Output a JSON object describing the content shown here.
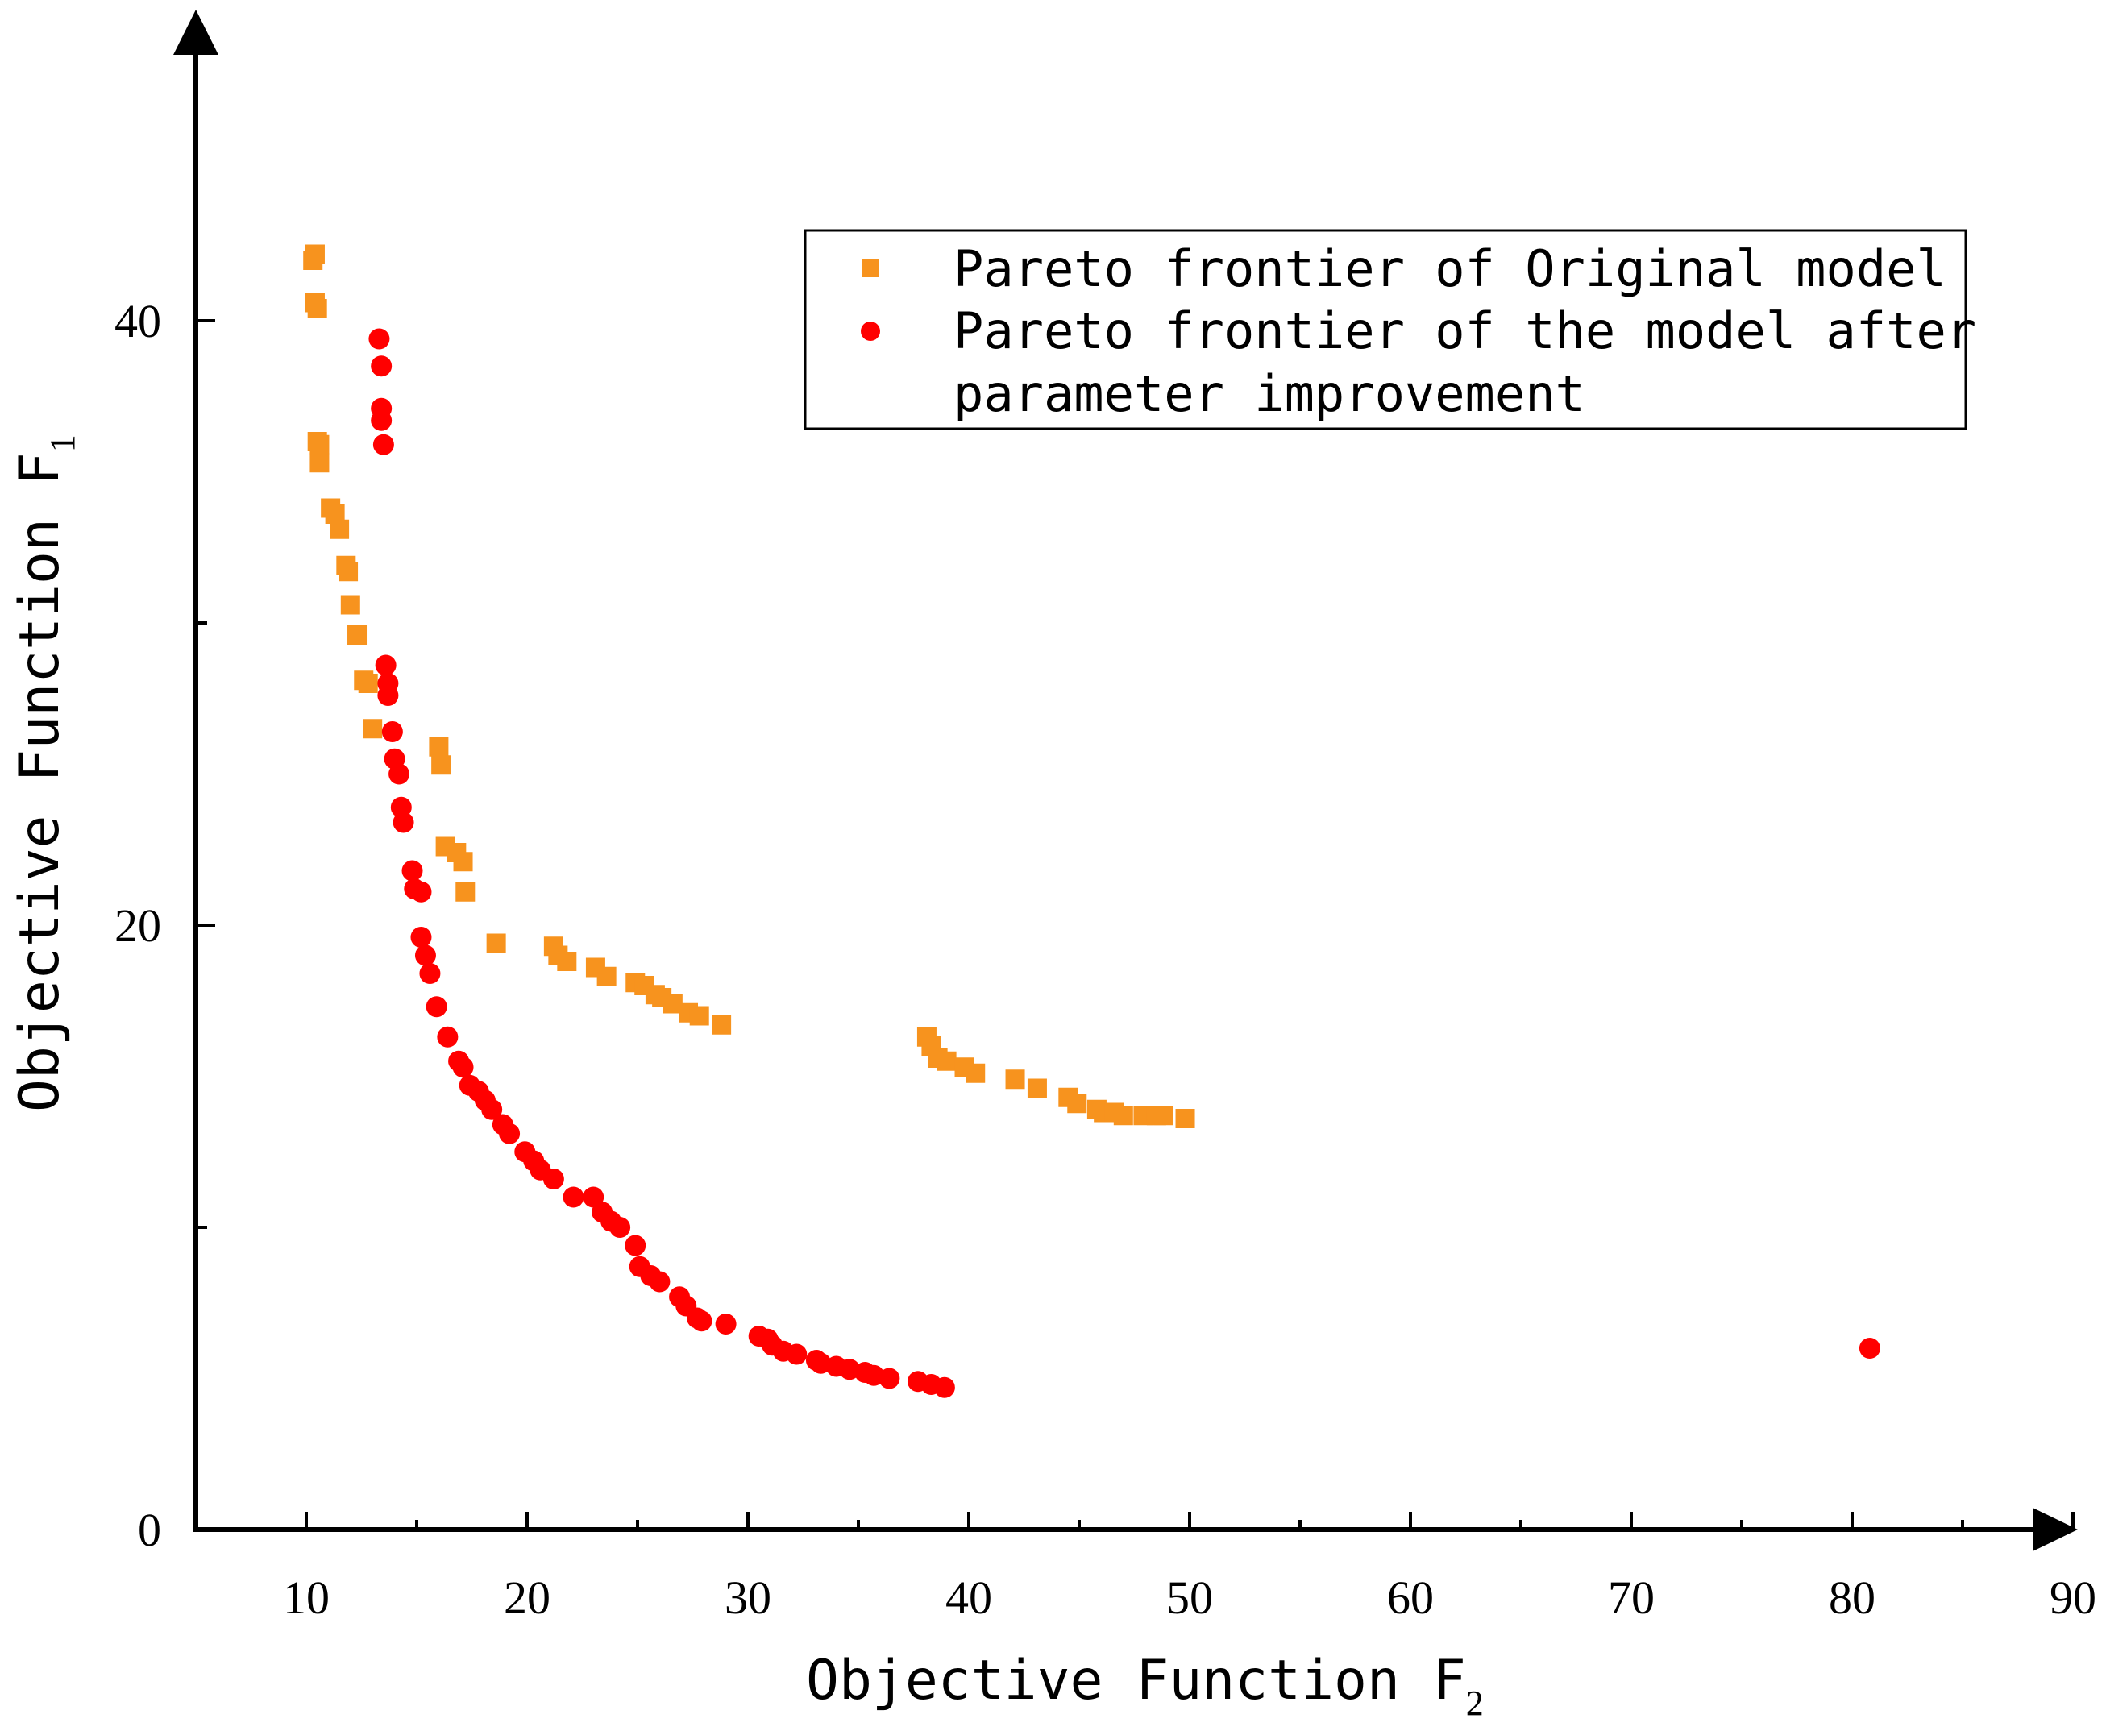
{
  "chart_data": {
    "type": "scatter",
    "xlabel": "Objective Function F",
    "xlabel_sub": "2",
    "ylabel": "Objective Function F",
    "ylabel_sub": "1",
    "xlim": [
      5,
      90
    ],
    "ylim": [
      0,
      50
    ],
    "x_ticks": [
      10,
      20,
      30,
      40,
      50,
      60,
      70,
      80,
      90
    ],
    "x_minor_ticks": [
      15,
      25,
      35,
      45,
      55,
      65,
      75,
      85
    ],
    "y_ticks": [
      0,
      20,
      40
    ],
    "y_minor_ticks": [
      10,
      30
    ],
    "grid": false,
    "legend_position": "top-right",
    "legend": [
      "Pareto frontier of Original model",
      "Pareto frontier of the model after",
      "parameter improvement"
    ],
    "series": [
      {
        "name": "Pareto frontier of Original model",
        "marker": "square",
        "color": "#F7931E",
        "points": [
          [
            10.3,
            42.0
          ],
          [
            10.4,
            42.2
          ],
          [
            10.4,
            40.6
          ],
          [
            10.5,
            40.4
          ],
          [
            10.5,
            36.0
          ],
          [
            10.6,
            35.9
          ],
          [
            10.6,
            35.3
          ],
          [
            11.1,
            33.8
          ],
          [
            11.3,
            33.6
          ],
          [
            11.5,
            33.1
          ],
          [
            11.8,
            31.9
          ],
          [
            11.9,
            31.7
          ],
          [
            12.0,
            30.6
          ],
          [
            12.3,
            29.6
          ],
          [
            12.6,
            28.1
          ],
          [
            12.8,
            28.0
          ],
          [
            13.0,
            26.5
          ],
          [
            16.0,
            25.9
          ],
          [
            16.1,
            25.3
          ],
          [
            16.3,
            22.6
          ],
          [
            16.8,
            22.4
          ],
          [
            17.1,
            22.1
          ],
          [
            17.2,
            21.1
          ],
          [
            18.6,
            19.4
          ],
          [
            21.2,
            19.3
          ],
          [
            21.4,
            19.0
          ],
          [
            21.8,
            18.8
          ],
          [
            23.1,
            18.6
          ],
          [
            23.6,
            18.3
          ],
          [
            24.9,
            18.1
          ],
          [
            25.3,
            18.0
          ],
          [
            25.8,
            17.7
          ],
          [
            26.1,
            17.6
          ],
          [
            26.6,
            17.4
          ],
          [
            27.3,
            17.1
          ],
          [
            27.8,
            17.0
          ],
          [
            28.8,
            16.7
          ],
          [
            38.1,
            16.3
          ],
          [
            38.3,
            16.0
          ],
          [
            38.6,
            15.6
          ],
          [
            39.0,
            15.5
          ],
          [
            39.8,
            15.3
          ],
          [
            40.3,
            15.1
          ],
          [
            42.1,
            14.9
          ],
          [
            43.1,
            14.6
          ],
          [
            44.5,
            14.3
          ],
          [
            44.9,
            14.1
          ],
          [
            45.8,
            13.9
          ],
          [
            46.1,
            13.8
          ],
          [
            46.6,
            13.8
          ],
          [
            47.0,
            13.7
          ],
          [
            47.9,
            13.7
          ],
          [
            48.5,
            13.7
          ],
          [
            48.8,
            13.7
          ],
          [
            49.8,
            13.6
          ]
        ]
      },
      {
        "name": "Pareto frontier of the model after parameter improvement",
        "marker": "circle",
        "color": "#FF0000",
        "points": [
          [
            13.3,
            39.4
          ],
          [
            13.4,
            38.5
          ],
          [
            13.4,
            37.1
          ],
          [
            13.4,
            36.7
          ],
          [
            13.5,
            35.9
          ],
          [
            13.6,
            28.6
          ],
          [
            13.7,
            28.0
          ],
          [
            13.7,
            27.6
          ],
          [
            13.9,
            26.4
          ],
          [
            14.0,
            25.5
          ],
          [
            14.2,
            25.0
          ],
          [
            14.3,
            23.9
          ],
          [
            14.4,
            23.4
          ],
          [
            14.8,
            21.8
          ],
          [
            14.9,
            21.2
          ],
          [
            15.2,
            21.1
          ],
          [
            15.2,
            19.6
          ],
          [
            15.4,
            19.0
          ],
          [
            15.6,
            18.4
          ],
          [
            15.9,
            17.3
          ],
          [
            16.4,
            16.3
          ],
          [
            16.9,
            15.5
          ],
          [
            17.1,
            15.3
          ],
          [
            17.4,
            14.7
          ],
          [
            17.8,
            14.5
          ],
          [
            18.1,
            14.2
          ],
          [
            18.4,
            13.9
          ],
          [
            18.9,
            13.4
          ],
          [
            19.2,
            13.1
          ],
          [
            19.9,
            12.5
          ],
          [
            20.3,
            12.2
          ],
          [
            20.6,
            11.9
          ],
          [
            21.2,
            11.6
          ],
          [
            22.1,
            11.0
          ],
          [
            23.0,
            11.0
          ],
          [
            23.4,
            10.5
          ],
          [
            23.8,
            10.2
          ],
          [
            24.2,
            10.0
          ],
          [
            24.9,
            9.4
          ],
          [
            25.1,
            8.7
          ],
          [
            25.6,
            8.4
          ],
          [
            26.0,
            8.2
          ],
          [
            26.9,
            7.7
          ],
          [
            27.2,
            7.4
          ],
          [
            27.7,
            7.0
          ],
          [
            27.9,
            6.9
          ],
          [
            29.0,
            6.8
          ],
          [
            30.5,
            6.4
          ],
          [
            30.9,
            6.3
          ],
          [
            31.1,
            6.1
          ],
          [
            31.6,
            5.9
          ],
          [
            32.2,
            5.8
          ],
          [
            33.1,
            5.6
          ],
          [
            33.3,
            5.5
          ],
          [
            34.0,
            5.4
          ],
          [
            34.6,
            5.3
          ],
          [
            35.3,
            5.2
          ],
          [
            35.7,
            5.1
          ],
          [
            36.4,
            5.0
          ],
          [
            37.7,
            4.9
          ],
          [
            38.3,
            4.8
          ],
          [
            38.9,
            4.7
          ],
          [
            80.8,
            6.0
          ]
        ]
      }
    ]
  }
}
